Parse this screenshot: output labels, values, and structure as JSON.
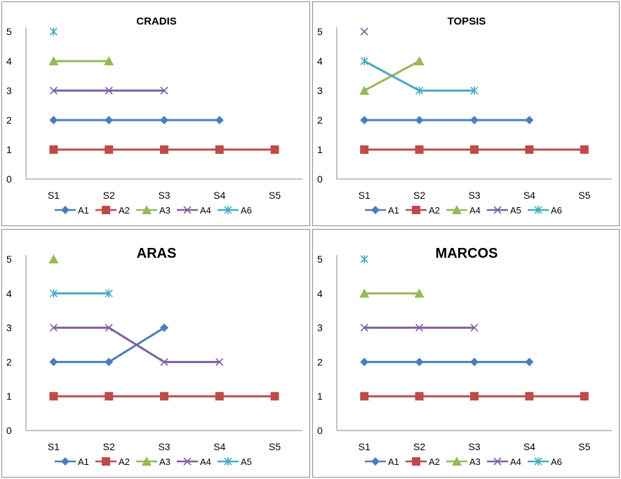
{
  "colors": {
    "A1": "#4a7ebb",
    "A2": "#be4b48",
    "A3": "#98b954",
    "A4": "#7d60a0",
    "A5": "#46aac4",
    "A6": "#46aac4",
    "A5_topsis": "#7d60a0"
  },
  "chart_data": [
    {
      "type": "line",
      "title": "CRADIS",
      "categories": [
        "S1",
        "S2",
        "S3",
        "S4",
        "S5"
      ],
      "ylim": [
        0,
        5
      ],
      "yticks": [
        "0",
        "1",
        "2",
        "3",
        "4",
        "5"
      ],
      "legend": "bottom",
      "series": [
        {
          "name": "A1",
          "marker": "diamond",
          "color": "#4a7ebb",
          "values": [
            2,
            2,
            2,
            2,
            null
          ]
        },
        {
          "name": "A2",
          "marker": "square",
          "color": "#be4b48",
          "values": [
            1,
            1,
            1,
            1,
            1
          ]
        },
        {
          "name": "A3",
          "marker": "triangle",
          "color": "#98b954",
          "values": [
            4,
            4,
            null,
            null,
            null
          ]
        },
        {
          "name": "A4",
          "marker": "x",
          "color": "#7d60a0",
          "values": [
            3,
            3,
            3,
            null,
            null
          ]
        },
        {
          "name": "A6",
          "marker": "star",
          "color": "#46aac4",
          "values": [
            5,
            null,
            null,
            null,
            null
          ]
        }
      ]
    },
    {
      "type": "line",
      "title": "TOPSIS",
      "categories": [
        "S1",
        "S2",
        "S3",
        "S4",
        "S5"
      ],
      "ylim": [
        0,
        5
      ],
      "yticks": [
        "0",
        "1",
        "2",
        "3",
        "4",
        "5"
      ],
      "legend": "bottom",
      "series": [
        {
          "name": "A1",
          "marker": "diamond",
          "color": "#4a7ebb",
          "values": [
            2,
            2,
            2,
            2,
            null
          ]
        },
        {
          "name": "A2",
          "marker": "square",
          "color": "#be4b48",
          "values": [
            1,
            1,
            1,
            1,
            1
          ]
        },
        {
          "name": "A4",
          "marker": "triangle",
          "color": "#98b954",
          "values": [
            3,
            4,
            null,
            null,
            null
          ]
        },
        {
          "name": "A5",
          "marker": "x",
          "color": "#7d60a0",
          "values": [
            5,
            null,
            null,
            null,
            null
          ]
        },
        {
          "name": "A6",
          "marker": "star",
          "color": "#46aac4",
          "values": [
            4,
            3,
            3,
            null,
            null
          ]
        }
      ]
    },
    {
      "type": "line",
      "title": "ARAS",
      "categories": [
        "S1",
        "S2",
        "S3",
        "S4",
        "S5"
      ],
      "ylim": [
        0,
        5
      ],
      "yticks": [
        "0",
        "1",
        "2",
        "3",
        "4",
        "5"
      ],
      "legend": "bottom",
      "series": [
        {
          "name": "A1",
          "marker": "diamond",
          "color": "#4a7ebb",
          "values": [
            2,
            2,
            3,
            null,
            null
          ]
        },
        {
          "name": "A2",
          "marker": "square",
          "color": "#be4b48",
          "values": [
            1,
            1,
            1,
            1,
            1
          ]
        },
        {
          "name": "A3",
          "marker": "triangle",
          "color": "#98b954",
          "values": [
            5,
            null,
            null,
            null,
            null
          ]
        },
        {
          "name": "A4",
          "marker": "x",
          "color": "#7d60a0",
          "values": [
            3,
            3,
            2,
            2,
            null
          ]
        },
        {
          "name": "A5",
          "marker": "star",
          "color": "#46aac4",
          "values": [
            4,
            4,
            null,
            null,
            null
          ]
        }
      ]
    },
    {
      "type": "line",
      "title": "MARCOS",
      "categories": [
        "S1",
        "S2",
        "S3",
        "S4",
        "S5"
      ],
      "ylim": [
        0,
        5
      ],
      "yticks": [
        "0",
        "1",
        "2",
        "3",
        "4",
        "5"
      ],
      "legend": "bottom",
      "series": [
        {
          "name": "A1",
          "marker": "diamond",
          "color": "#4a7ebb",
          "values": [
            2,
            2,
            2,
            2,
            null
          ]
        },
        {
          "name": "A2",
          "marker": "square",
          "color": "#be4b48",
          "values": [
            1,
            1,
            1,
            1,
            1
          ]
        },
        {
          "name": "A3",
          "marker": "triangle",
          "color": "#98b954",
          "values": [
            4,
            4,
            null,
            null,
            null
          ]
        },
        {
          "name": "A4",
          "marker": "x",
          "color": "#7d60a0",
          "values": [
            3,
            3,
            3,
            null,
            null
          ]
        },
        {
          "name": "A6",
          "marker": "star",
          "color": "#46aac4",
          "values": [
            5,
            null,
            null,
            null,
            null
          ]
        }
      ]
    }
  ]
}
